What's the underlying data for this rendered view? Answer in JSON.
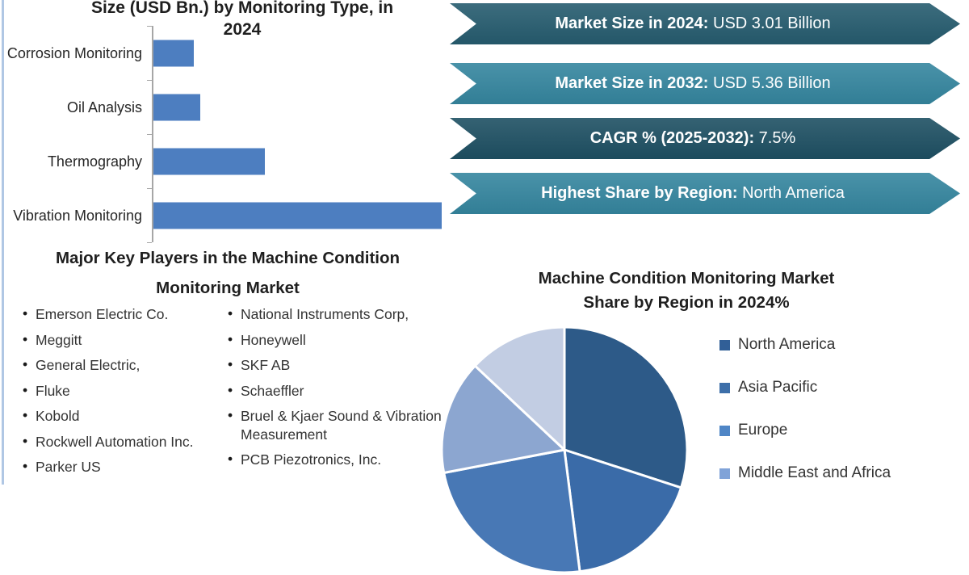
{
  "frame": {
    "left_border_color": "#b0c7e4",
    "background": "#ffffff"
  },
  "bar_section": {
    "title_line1": "Size (USD Bn.) by Monitoring Type, in",
    "title_line2": "2024"
  },
  "banners": {
    "text_color": "#ffffff",
    "items": [
      {
        "label": "Market Size in 2024:",
        "value": "USD 3.01 Billion",
        "bg": "#265c6f"
      },
      {
        "label": "Market Size in 2032:",
        "value": "USD 5.36 Billion",
        "bg": "#35869f"
      },
      {
        "label": "CAGR % (2025-2032):",
        "value": "7.5%",
        "bg": "#1e5063"
      },
      {
        "label": "Highest Share by Region:",
        "value": "North America",
        "bg": "#35869f"
      }
    ]
  },
  "key_players": {
    "heading_line1": "Major Key Players in the Machine Condition",
    "heading_line2": "Monitoring Market",
    "columns": [
      [
        "Emerson Electric Co.",
        "Meggitt",
        "General Electric,",
        "Fluke",
        "Kobold",
        "Rockwell Automation Inc.",
        "Parker US"
      ],
      [
        "National Instruments Corp,",
        "Honeywell",
        "SKF AB",
        "Schaeffler",
        "Bruel & Kjaer Sound & Vibration Measurement",
        "PCB Piezotronics, Inc."
      ]
    ]
  },
  "pie_section": {
    "title_line1": "Machine Condition Monitoring Market",
    "title_line2": "Share by Region in 2024%"
  },
  "chart_data": [
    {
      "type": "bar",
      "orientation": "horizontal",
      "title": "Size (USD Bn.) by Monitoring Type, in 2024",
      "categories": [
        "Corrosion Monitoring",
        "Oil Analysis",
        "Thermography",
        "Vibration Monitoring"
      ],
      "values": [
        0.2,
        0.23,
        0.54,
        1.38
      ],
      "xlim": [
        0,
        1.4
      ],
      "bar_color": "#4d7ec0",
      "grid": false,
      "note": "no numeric axis labels visible; values estimated from bar lengths"
    },
    {
      "type": "pie",
      "title": "Machine Condition Monitoring Market Share by Region in 2024%",
      "start_angle_deg": 0,
      "direction": "clockwise",
      "slices": [
        {
          "label": "North America",
          "value": 30,
          "color": "#2d5a88"
        },
        {
          "label": "Asia Pacific",
          "value": 18,
          "color": "#3a6ba8"
        },
        {
          "label": "Europe",
          "value": 24,
          "color": "#4878b5"
        },
        {
          "label": "Middle East and Africa",
          "value": 15,
          "color": "#8ca6d0"
        },
        {
          "label": "",
          "value": 13,
          "color": "#c2cde3",
          "note": "legend entry cut off by image edge"
        }
      ],
      "legend_position": "right",
      "legend_visible": [
        "North America",
        "Asia Pacific",
        "Europe",
        "Middle East and Africa"
      ],
      "legend_marker_colors": [
        "#315f97",
        "#3d6fa9",
        "#4f86c6",
        "#80a3d8"
      ],
      "note": "percentages estimated from slice angles; pie bottom and last legend entry are cut off by the image edge"
    }
  ]
}
